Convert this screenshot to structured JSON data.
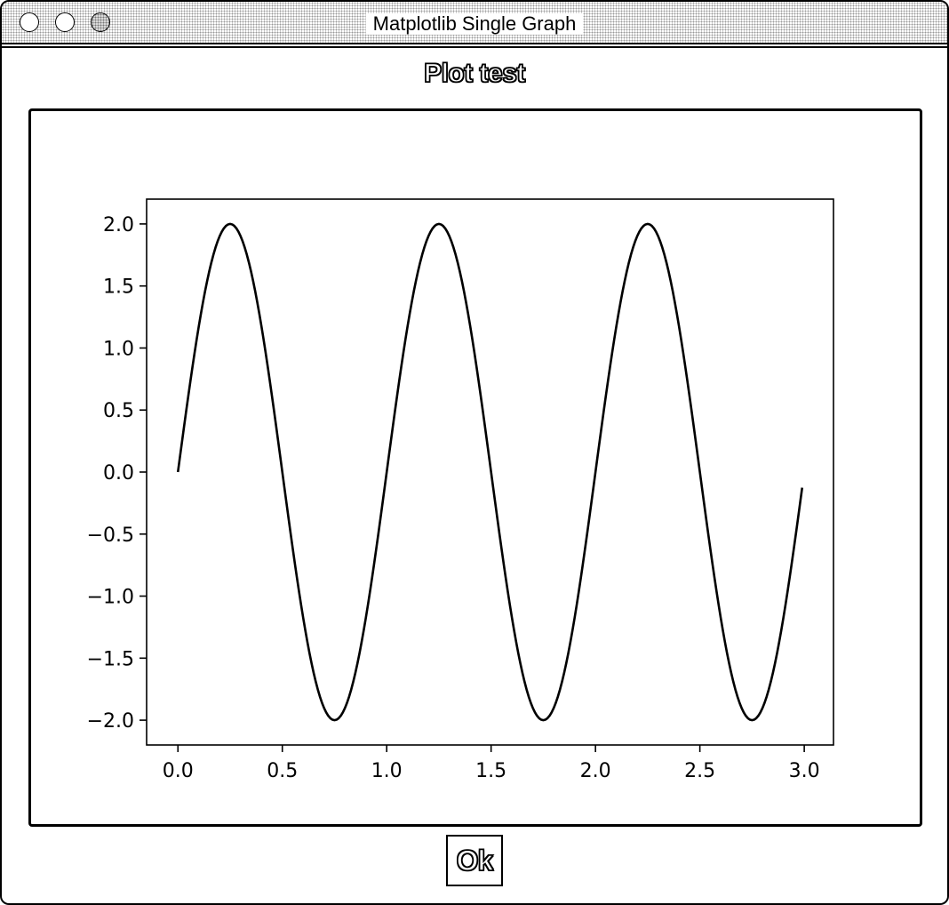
{
  "window": {
    "title": "Matplotlib Single Graph"
  },
  "dialog": {
    "heading": "Plot test",
    "ok_label": "Ok"
  },
  "chart_data": {
    "type": "line",
    "title": "",
    "xlabel": "",
    "ylabel": "",
    "xlim": [
      -0.15,
      3.14
    ],
    "ylim": [
      -2.2,
      2.2
    ],
    "xticks": [
      0.0,
      0.5,
      1.0,
      1.5,
      2.0,
      2.5,
      3.0
    ],
    "xtick_labels": [
      "0.0",
      "0.5",
      "1.0",
      "1.5",
      "2.0",
      "2.5",
      "3.0"
    ],
    "yticks": [
      2.0,
      1.5,
      1.0,
      0.5,
      0.0,
      -0.5,
      -1.0,
      -1.5,
      -2.0
    ],
    "ytick_labels": [
      "2.0",
      "1.5",
      "1.0",
      "0.5",
      "0.0",
      "−0.5",
      "−1.0",
      "−1.5",
      "−2.0"
    ],
    "grid": false,
    "series": [
      {
        "function": "y = 2*sin(2*pi*x)",
        "x_start": 0.0,
        "x_end": 2.99,
        "x_step": 0.01,
        "color": "#000000"
      }
    ]
  }
}
